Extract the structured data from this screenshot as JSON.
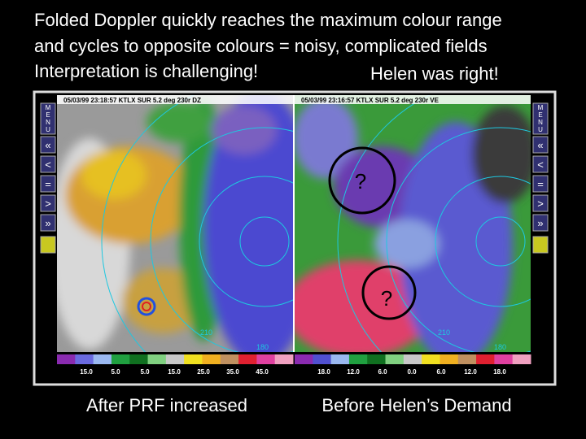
{
  "title": {
    "line1": "Folded Doppler quickly reaches the maximum colour range",
    "line2": "and cycles to opposite colours = noisy, complicated fields",
    "line3": "Interpretation is challenging!",
    "note": "Helen was right!"
  },
  "menu": {
    "label": "MENU",
    "buttons": [
      "«",
      "<",
      "=",
      ">",
      "»"
    ]
  },
  "panels": [
    {
      "header": "05/03/99 23:18:57  KTLX   SUR   5.2 deg 230r DZ",
      "range_labels": [
        "210",
        "180"
      ],
      "scale": [
        "15.0",
        "5.0",
        "5.0",
        "15.0",
        "25.0",
        "35.0",
        "45.0"
      ],
      "caption": "After PRF increased"
    },
    {
      "header": "05/03/99 23:16:57  KTLX   SUR   5.2 deg 230r VE",
      "range_labels": [
        "210",
        "180"
      ],
      "scale": [
        "18.0",
        "12.0",
        "6.0",
        "0.0",
        "6.0",
        "12.0",
        "18.0"
      ],
      "caption": "Before Helen’s Demand",
      "annotations": [
        "?",
        "?"
      ]
    }
  ]
}
